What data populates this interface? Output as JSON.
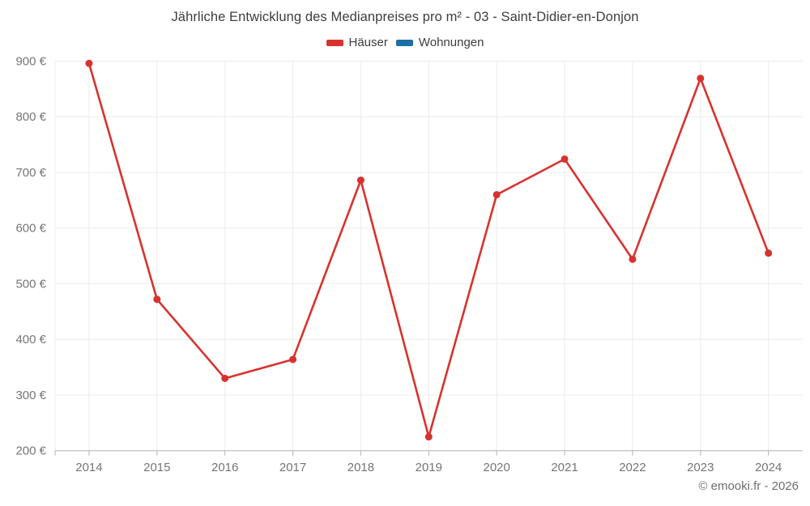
{
  "chart_data": {
    "type": "line",
    "title": "Jährliche Entwicklung des Medianpreises pro m² - 03 - Saint-Didier-en-Donjon",
    "categories": [
      "2014",
      "2015",
      "2016",
      "2017",
      "2018",
      "2019",
      "2020",
      "2021",
      "2022",
      "2023",
      "2024"
    ],
    "series": [
      {
        "name": "Häuser",
        "color": "#d8322f",
        "values": [
          896,
          472,
          330,
          364,
          686,
          225,
          660,
          724,
          544,
          869,
          555
        ]
      },
      {
        "name": "Wohnungen",
        "color": "#1c6ea4",
        "values": []
      }
    ],
    "xlabel": "",
    "ylabel": "",
    "ylim": [
      200,
      900
    ],
    "y_ticks": [
      200,
      300,
      400,
      500,
      600,
      700,
      800,
      900
    ],
    "y_tick_labels": [
      "200 €",
      "300 €",
      "400 €",
      "500 €",
      "600 €",
      "700 €",
      "800 €",
      "900 €"
    ],
    "grid": true,
    "legend_position": "top",
    "colors": {
      "grid_line": "#ececec",
      "axis_line": "#b1b1b1",
      "tick_label": "#757575"
    }
  },
  "footer": {
    "text": "© emooki.fr - 2026"
  }
}
